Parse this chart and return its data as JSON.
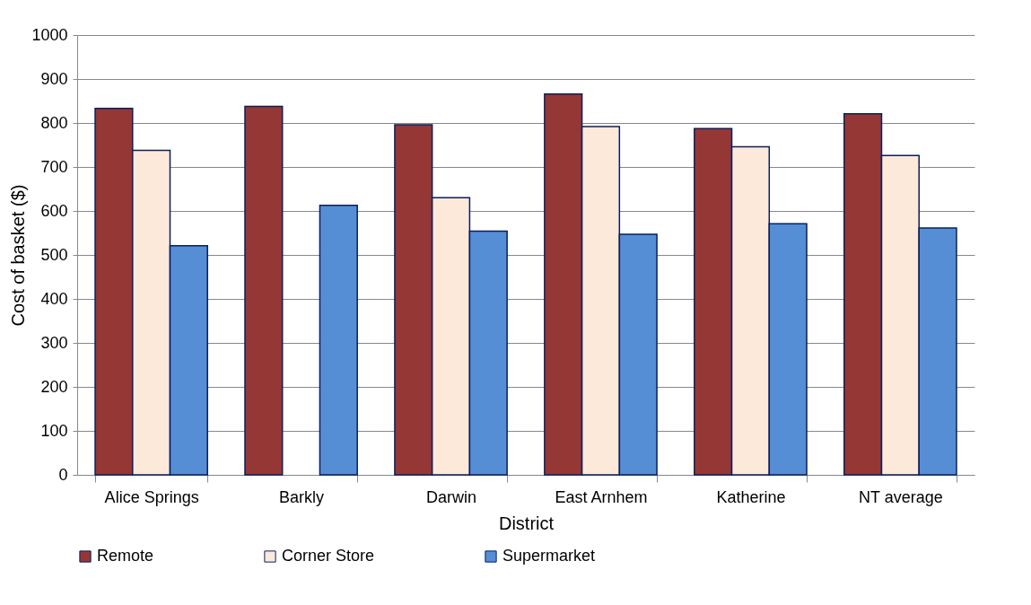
{
  "chart_data": {
    "type": "bar",
    "xlabel": "District",
    "ylabel": "Cost of basket ($)",
    "categories": [
      "Alice Springs",
      "Barkly",
      "Darwin",
      "East Arnhem",
      "Katherine",
      "NT average"
    ],
    "series": [
      {
        "name": "Remote",
        "color": "#953735",
        "values": [
          833,
          838,
          796,
          866,
          787,
          821
        ]
      },
      {
        "name": "Corner Store",
        "color": "#fde9d9",
        "values": [
          738,
          null,
          630,
          792,
          746,
          726
        ]
      },
      {
        "name": "Supermarket",
        "color": "#558ed5",
        "values": [
          521,
          613,
          554,
          547,
          571,
          561
        ]
      }
    ],
    "ylim": [
      0,
      1000
    ],
    "yticks": [
      0,
      100,
      200,
      300,
      400,
      500,
      600,
      700,
      800,
      900,
      1000
    ],
    "grid": "y",
    "legend": "bottom"
  }
}
